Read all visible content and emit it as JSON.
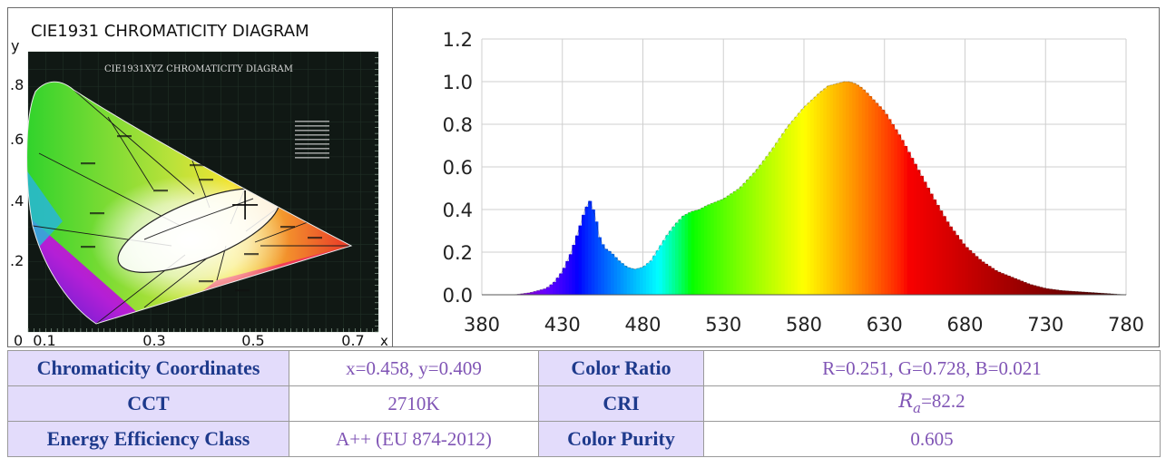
{
  "cie": {
    "title": "CIE1931 CHROMATICITY DIAGRAM",
    "inner_title": "CIE1931XYZ CHROMATICITY DIAGRAM",
    "y_axis_label": "y",
    "x_axis_label": "x",
    "y_ticks": [
      ".8",
      ".6",
      ".4",
      ".2"
    ],
    "x_ticks": [
      "0",
      "0.1",
      "0.3",
      "0.5",
      "0.7"
    ],
    "marker": {
      "x": 0.458,
      "y": 0.409
    }
  },
  "chart_data": {
    "type": "area",
    "title": "",
    "xlabel": "",
    "ylabel": "",
    "xlim": [
      380,
      780
    ],
    "ylim": [
      0,
      1.2
    ],
    "grid": true,
    "x_ticks": [
      "380",
      "430",
      "480",
      "530",
      "580",
      "630",
      "680",
      "730",
      "780"
    ],
    "y_ticks": [
      "0.0",
      "0.2",
      "0.4",
      "0.6",
      "0.8",
      "1.0",
      "1.2"
    ],
    "x": [
      400,
      410,
      420,
      425,
      430,
      435,
      440,
      444,
      447,
      450,
      453,
      456,
      460,
      465,
      470,
      475,
      480,
      485,
      490,
      495,
      500,
      505,
      510,
      515,
      520,
      530,
      540,
      550,
      560,
      570,
      580,
      590,
      595,
      600,
      605,
      608,
      612,
      616,
      620,
      630,
      640,
      650,
      660,
      670,
      680,
      690,
      700,
      710,
      720,
      730,
      740,
      750,
      760,
      770,
      780
    ],
    "values": [
      0.0,
      0.01,
      0.03,
      0.06,
      0.11,
      0.19,
      0.3,
      0.4,
      0.44,
      0.38,
      0.27,
      0.22,
      0.2,
      0.16,
      0.13,
      0.12,
      0.13,
      0.16,
      0.22,
      0.28,
      0.33,
      0.37,
      0.39,
      0.4,
      0.42,
      0.45,
      0.5,
      0.58,
      0.68,
      0.79,
      0.88,
      0.95,
      0.98,
      0.99,
      1.0,
      1.0,
      0.99,
      0.97,
      0.94,
      0.86,
      0.74,
      0.6,
      0.46,
      0.33,
      0.23,
      0.16,
      0.11,
      0.08,
      0.05,
      0.03,
      0.02,
      0.015,
      0.01,
      0.005,
      0.0
    ]
  },
  "specs": {
    "rows": [
      {
        "label1": "Chromaticity Coordinates",
        "value1": "x=0.458, y=0.409",
        "label2": "Color Ratio",
        "value2": "R=0.251, G=0.728, B=0.021"
      },
      {
        "label1": "CCT",
        "value1": "2710K",
        "label2": "CRI",
        "value2_sym": "R",
        "value2_sub": "a",
        "value2_rest": "=82.2"
      },
      {
        "label1": "Energy Efficiency Class",
        "value1": "A++ (EU 874-2012)",
        "label2": "Color Purity",
        "value2": "0.605"
      }
    ]
  }
}
